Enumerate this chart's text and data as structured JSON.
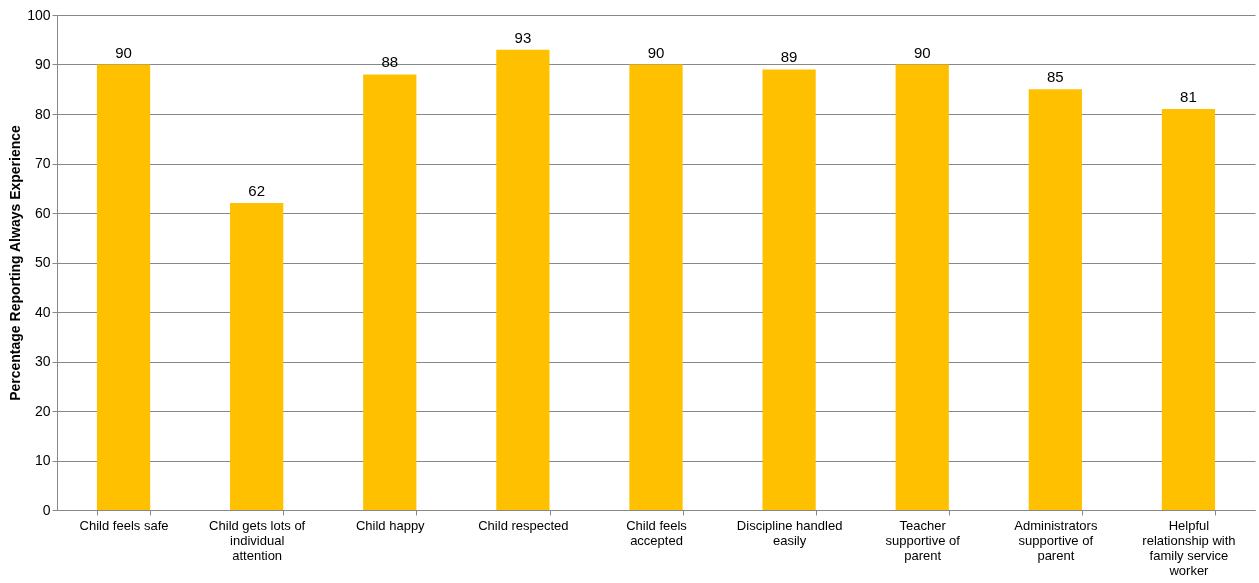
{
  "chart_data": {
    "type": "bar",
    "ylabel": "Percentage Reporting Always Experience",
    "categories": [
      "Child feels safe",
      "Child gets lots of individual attention",
      "Child happy",
      "Child respected",
      "Child feels accepted",
      "Discipline handled easily",
      "Teacher supportive of parent",
      "Administrators supportive of parent",
      "Helpful relationship with family service worker"
    ],
    "values": [
      90,
      62,
      88,
      93,
      90,
      89,
      90,
      85,
      81
    ],
    "color": "#ffc000",
    "ylim": [
      0,
      100
    ],
    "yticks": [
      0,
      10,
      20,
      30,
      40,
      50,
      60,
      70,
      80,
      90,
      100
    ],
    "grid": "y",
    "data_labels": true
  }
}
